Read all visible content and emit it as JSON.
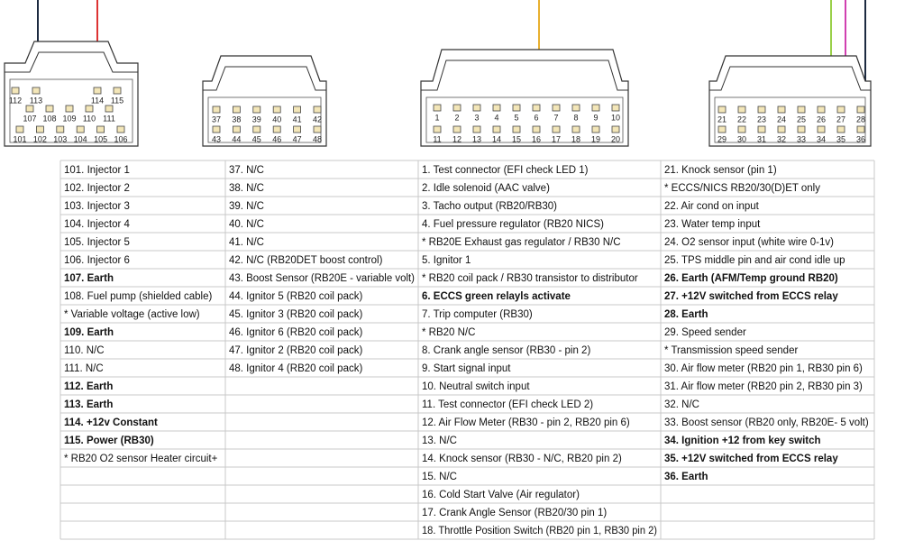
{
  "connectors": [
    {
      "pin_rows": [
        [
          "112",
          "113",
          "114",
          "115"
        ],
        [
          "107",
          "108",
          "109",
          "110",
          "111"
        ],
        [
          "101",
          "102",
          "103",
          "104",
          "105",
          "106"
        ]
      ]
    },
    {
      "pin_rows": [
        [
          "37",
          "38",
          "39",
          "40",
          "41",
          "42"
        ],
        [
          "43",
          "44",
          "45",
          "46",
          "47",
          "48"
        ]
      ]
    },
    {
      "pin_rows": [
        [
          "1",
          "2",
          "3",
          "4",
          "5",
          "6",
          "7",
          "8",
          "9",
          "10"
        ],
        [
          "11",
          "12",
          "13",
          "14",
          "15",
          "16",
          "17",
          "18",
          "19",
          "20"
        ]
      ]
    },
    {
      "pin_rows": [
        [
          "21",
          "22",
          "23",
          "24",
          "25",
          "26",
          "27",
          "28"
        ],
        [
          "29",
          "30",
          "31",
          "32",
          "33",
          "34",
          "35",
          "36"
        ]
      ]
    }
  ],
  "table": {
    "rows": [
      [
        {
          "text": "101. Injector 1",
          "color": "#c09a5e"
        },
        "37. N/C",
        "1. Test connector (EFI check LED 1)",
        "21. Knock sensor (pin 1)"
      ],
      [
        {
          "text": "102. Injector 2",
          "color": "#c09a5e"
        },
        "38. N/C",
        {
          "text": "2. Idle solenoid (AAC valve)",
          "color": "#7d7d7d"
        },
        "* ECCS/NICS RB20/30(D)ET only"
      ],
      [
        {
          "text": "103. Injector 3",
          "color": "#c09a5e"
        },
        "39. N/C",
        {
          "text": "3. Tacho output (RB20/RB30)",
          "color": "#7d7d7d"
        },
        {
          "text": "22. Air cond on input",
          "color": "#7d7d7d"
        }
      ],
      [
        {
          "text": "104. Injector 4",
          "color": "#c09a5e"
        },
        "40. N/C",
        {
          "text": "4. Fuel pressure regulator (RB20 NICS)",
          "color": "#7d7d7d"
        },
        {
          "text": "23. Water temp input",
          "color": "#7d7d7d"
        }
      ],
      [
        {
          "text": "105. Injector 5",
          "color": "#c09a5e"
        },
        "41. N/C",
        "* RB20E Exhaust gas regulator / RB30 N/C",
        "24. O2 sensor input (white wire 0-1v)"
      ],
      [
        {
          "text": "106. Injector 6",
          "color": "#c09a5e"
        },
        "42. N/C (RB20DET boost control)",
        {
          "text": "5. Ignitor 1",
          "color": "#c09a5e"
        },
        {
          "text": "25. TPS middle pin and air cond idle up",
          "color": "#7d7d7d"
        }
      ],
      [
        {
          "text": "107. Earth",
          "bold": true
        },
        "43. Boost Sensor (RB20E - variable volt)",
        {
          "text": "* RB20 coil pack / RB30 transistor to distributor",
          "color": "#7d7d7d"
        },
        {
          "text": "26. Earth (AFM/Temp ground RB20)",
          "bold": true
        }
      ],
      [
        "108. Fuel pump (shielded cable)",
        {
          "text": "44. Ignitor 5 (RB20 coil pack)",
          "color": "#c09a5e"
        },
        {
          "text": "6. ECCS green relayls activate",
          "color": "#d4822a",
          "bold": true
        },
        {
          "text": "27. +12V switched from ECCS relay",
          "color": "#b0302a",
          "bold": true
        }
      ],
      [
        "* Variable voltage (active low)",
        {
          "text": "45. Ignitor 3 (RB20 coil pack)",
          "color": "#c09a5e"
        },
        "7. Trip computer (RB30)",
        {
          "text": "28. Earth",
          "bold": true
        }
      ],
      [
        {
          "text": "109. Earth",
          "bold": true
        },
        {
          "text": "46. Ignitor 6 (RB20 coil pack)",
          "color": "#c09a5e"
        },
        "* RB20 N/C",
        {
          "text": "29. Speed sender",
          "color": "#7d7d7d"
        }
      ],
      [
        "110. N/C",
        {
          "text": "47. Ignitor 2 (RB20 coil pack)",
          "color": "#c09a5e"
        },
        {
          "text": "8. Crank angle sensor (RB30 - pin 2)",
          "color": "#7d7d7d"
        },
        "* Transmission speed sender"
      ],
      [
        "111. N/C",
        {
          "text": "48. Ignitor 4 (RB20 coil pack)",
          "color": "#c09a5e"
        },
        {
          "text": "9. Start signal input",
          "color": "#7d7d7d"
        },
        {
          "text": "30. Air flow meter (RB20 pin 1, RB30 pin 6)",
          "color": "#7d7d7d"
        }
      ],
      [
        {
          "text": "112. Earth",
          "bold": true
        },
        null,
        {
          "text": "10. Neutral switch input",
          "color": "#7d7d7d"
        },
        {
          "text": "31. Air flow meter (RB20 pin 2, RB30 pin 3)",
          "color": "#7d7d7d"
        }
      ],
      [
        {
          "text": "113. Earth",
          "bold": true
        },
        null,
        "11. Test connector (EFI check LED 2)",
        "32. N/C"
      ],
      [
        {
          "text": "114. +12v Constant",
          "color": "#b0302a",
          "bold": true
        },
        null,
        {
          "text": "12. Air Flow Meter (RB30 - pin 2, RB20 pin 6)",
          "color": "#7d7d7d"
        },
        "33. Boost sensor (RB20 only, RB20E- 5 volt)"
      ],
      [
        {
          "text": "115. Power (RB30)",
          "color": "#b0302a",
          "bold": true
        },
        null,
        "13. N/C",
        {
          "text": "34. Ignition +12 from key switch",
          "color": "#d4822a",
          "bold": true
        }
      ],
      [
        "* RB20 O2 sensor Heater circuit+",
        null,
        "14. Knock sensor (RB30 - N/C, RB20 pin 2)",
        {
          "text": "35. +12V switched from ECCS relay",
          "color": "#b0302a",
          "bold": true
        }
      ],
      [
        null,
        null,
        "15. N/C",
        {
          "text": "36. Earth",
          "bold": true
        }
      ],
      [
        null,
        null,
        {
          "text": "16. Cold Start Valve (Air regulator)",
          "color": "#7d7d7d"
        },
        null
      ],
      [
        null,
        null,
        {
          "text": "17. Crank Angle Sensor (RB20/30 pin 1)",
          "color": "#7d7d7d"
        },
        null
      ],
      [
        null,
        null,
        {
          "text": "18. Throttle Position Switch (RB20 pin 1, RB30 pin 2)",
          "color": "#7d7d7d"
        },
        null
      ]
    ]
  }
}
